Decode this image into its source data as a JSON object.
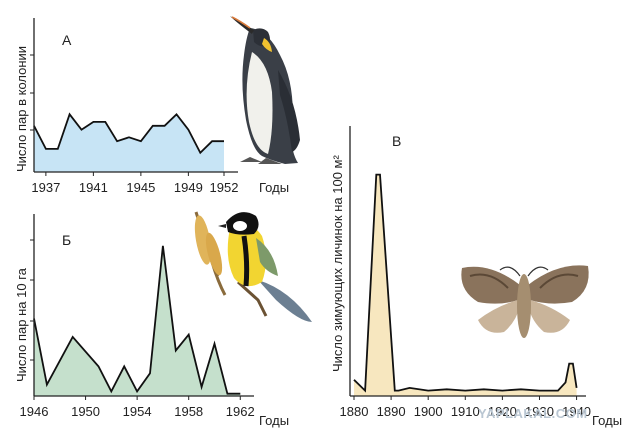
{
  "watermark": "YAPLAKAL.COM",
  "chart_data": [
    {
      "id": "A",
      "type": "area",
      "panel_label": "А",
      "ylabel": "Число пар в колонии",
      "xlabel": "Годы",
      "xticks": [
        "1937",
        "1941",
        "1945",
        "1949",
        "1952"
      ],
      "x": [
        1936,
        1937,
        1938,
        1939,
        1940,
        1941,
        1942,
        1943,
        1944,
        1945,
        1946,
        1947,
        1948,
        1949,
        1950,
        1951,
        1952
      ],
      "values": [
        6,
        3,
        3,
        7.5,
        5.5,
        6.5,
        6.5,
        4,
        4.5,
        4,
        6,
        6,
        7.5,
        5.5,
        2.5,
        4,
        4
      ],
      "xlim": [
        1936,
        1952
      ],
      "ylim": [
        0,
        20
      ],
      "fill": "#c7e4f5",
      "line": "#111111"
    },
    {
      "id": "B",
      "type": "area",
      "panel_label": "Б",
      "ylabel": "Число пар на 10 га",
      "xlabel": "Годы",
      "xticks": [
        "1946",
        "1950",
        "1954",
        "1958",
        "1962"
      ],
      "x": [
        1946,
        1947,
        1949,
        1951,
        1952,
        1953,
        1954,
        1955,
        1956,
        1957,
        1958,
        1959,
        1960,
        1961,
        1962
      ],
      "values": [
        34,
        5,
        26,
        13,
        2,
        13,
        2,
        10,
        66,
        20,
        27,
        4,
        23,
        1,
        1
      ],
      "xlim": [
        1946,
        1962.6
      ],
      "ylim": [
        0,
        80
      ],
      "fill": "#c5e0cc",
      "line": "#111111"
    },
    {
      "id": "C",
      "type": "area",
      "panel_label": "В",
      "ylabel": "Число зимующих личинок на 100 м²",
      "xlabel": "Годы",
      "xticks": [
        "1880",
        "1890",
        "1900",
        "1910",
        "1920",
        "1930",
        "1940"
      ],
      "x": [
        1880,
        1883,
        1886,
        1887,
        1891,
        1892,
        1895,
        1900,
        1905,
        1910,
        1915,
        1920,
        1925,
        1930,
        1935,
        1937,
        1938,
        1939,
        1940
      ],
      "values": [
        6,
        2,
        82,
        82,
        2,
        2,
        3,
        2,
        2.5,
        2,
        2.5,
        2,
        2.5,
        2,
        2,
        5,
        12,
        12,
        3
      ],
      "xlim": [
        1880,
        1942
      ],
      "ylim": [
        0,
        100
      ],
      "fill": "#f7e7bf",
      "line": "#111111"
    }
  ]
}
